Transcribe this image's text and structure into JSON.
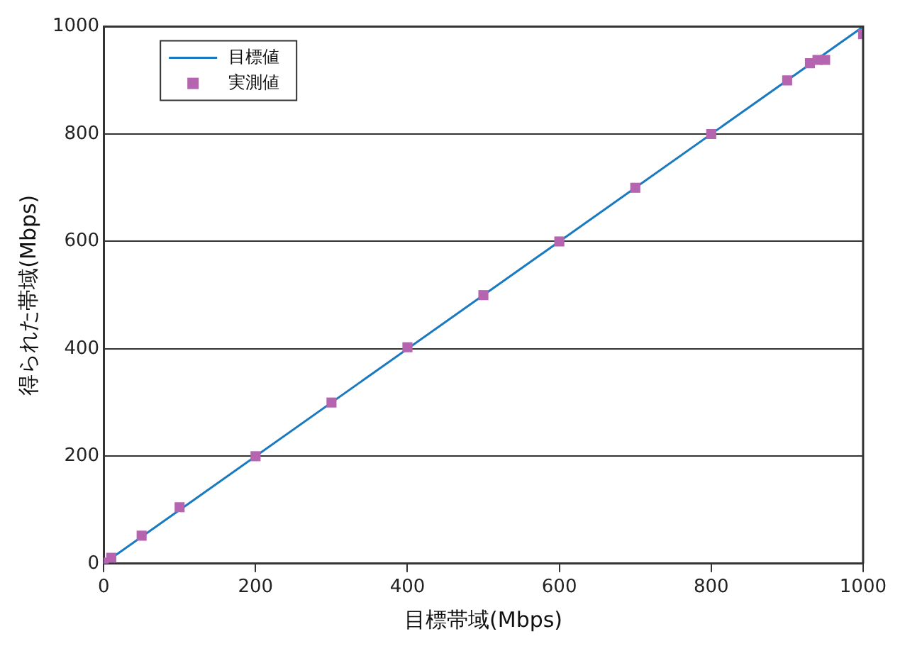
{
  "chart_data": {
    "type": "scatter",
    "xlabel": "目標帯域(Mbps)",
    "ylabel": "得られた帯域(Mbps)",
    "xlim": [
      0,
      1000
    ],
    "ylim": [
      0,
      1000
    ],
    "xticks": [
      0,
      200,
      400,
      600,
      800,
      1000
    ],
    "yticks": [
      0,
      200,
      400,
      600,
      800,
      1000
    ],
    "grid": "y",
    "legend": "top left",
    "series": [
      {
        "name": "目標値",
        "type": "line",
        "color": "#1a7ac0",
        "marker": "none",
        "line_style": "solid",
        "x": [
          0,
          1000
        ],
        "values": [
          0,
          1000
        ]
      },
      {
        "name": "実測値",
        "color": "#b565b0",
        "marker": "square",
        "x": [
          0,
          10,
          50,
          100,
          200,
          300,
          400,
          500,
          600,
          700,
          800,
          900,
          930,
          940,
          950,
          1000
        ],
        "values": [
          2,
          11,
          52,
          105,
          200,
          300,
          403,
          500,
          600,
          700,
          800,
          900,
          932,
          938,
          938,
          986
        ]
      }
    ]
  }
}
